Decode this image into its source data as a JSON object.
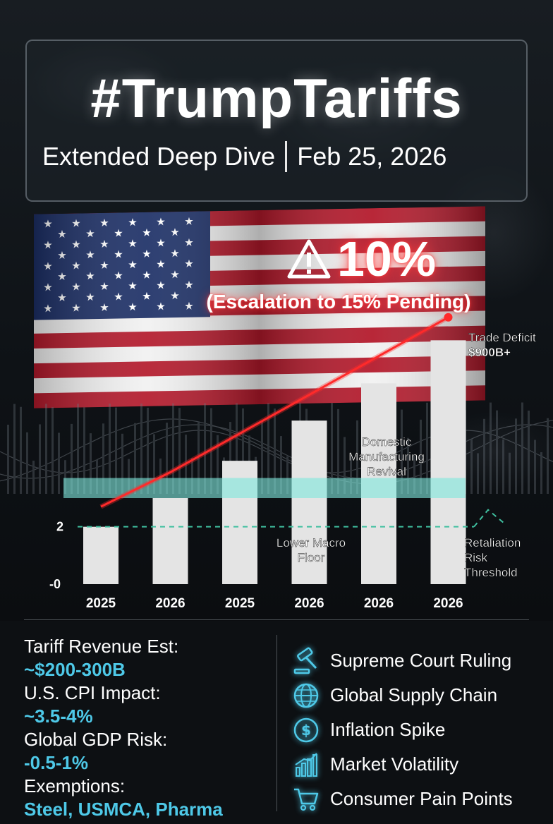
{
  "header": {
    "title": "#TrumpTariffs",
    "subtitle_left": "Extended Deep Dive",
    "subtitle_right": "Feb 25, 2026"
  },
  "alert": {
    "rate": "10%",
    "note": "(Escalation to 15% Pending)"
  },
  "chart_data": {
    "type": "bar",
    "categories": [
      "2025",
      "2026",
      "2025",
      "2026",
      "2026",
      "2026"
    ],
    "values": [
      2,
      3,
      4.3,
      5.7,
      7,
      8.5
    ],
    "ylim": [
      0,
      9
    ],
    "y_ticks": [
      "-0",
      "2"
    ],
    "trend_line": [
      {
        "x": 0,
        "y": 2.7
      },
      {
        "x": 1,
        "y": 3.9
      },
      {
        "x": 5,
        "y": 9.3
      }
    ],
    "reference_line": 2,
    "band": [
      3.0,
      3.7
    ],
    "annotations": {
      "trade_deficit": [
        "Trade Deficit",
        "$900B+"
      ],
      "manufacturing": [
        "Domestic",
        "Manufacturing",
        "Revival"
      ],
      "macro_floor": [
        "Lower Macro",
        "Floor"
      ],
      "retaliation": [
        "Retaliation",
        "Risk",
        "Threshold"
      ]
    },
    "colors": {
      "bar": "#e4e4e4",
      "trend": "#ff2a2a",
      "band": "#7fe6dc",
      "reference": "#3fbf9f"
    }
  },
  "stats": [
    {
      "label": "Tariff Revenue Est:",
      "value": "~$200-300B"
    },
    {
      "label": "U.S. CPI Impact:",
      "value": "~3.5-4%"
    },
    {
      "label": "Global GDP Risk:",
      "value": "-0.5-1%"
    },
    {
      "label": "Exemptions:",
      "value": "Steel, USMCA, Pharma"
    }
  ],
  "factors": [
    {
      "icon": "gavel-icon",
      "label": "Supreme Court Ruling"
    },
    {
      "icon": "globe-icon",
      "label": "Global Supply Chain"
    },
    {
      "icon": "dollar-coin-icon",
      "label": "Inflation Spike"
    },
    {
      "icon": "bar-chart-icon",
      "label": "Market Volatility"
    },
    {
      "icon": "shopping-cart-icon",
      "label": "Consumer Pain Points"
    }
  ],
  "colors": {
    "accent": "#4ec9e8",
    "alert": "#ff3b3b"
  }
}
